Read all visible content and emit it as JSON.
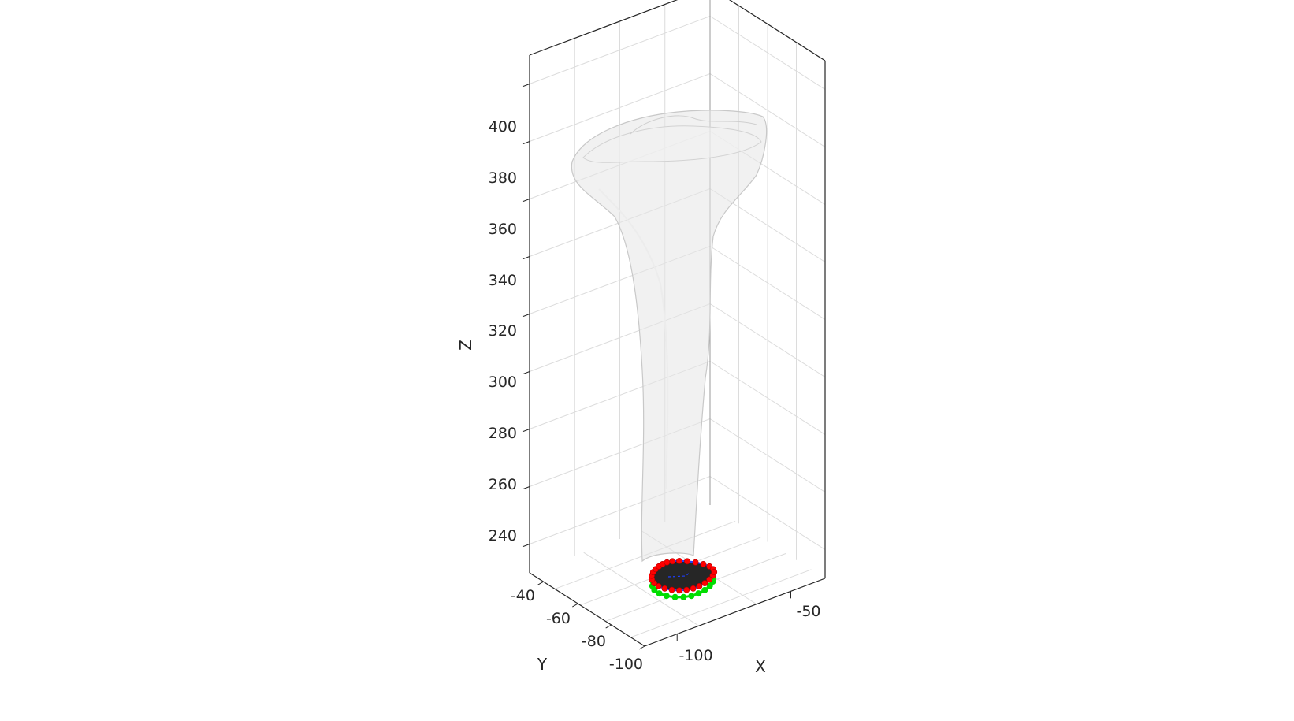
{
  "chart_data": {
    "type": "surface3d",
    "view": "3d",
    "grid": true,
    "xlabel": "X",
    "ylabel": "Y",
    "zlabel": "Z",
    "xticks": [
      "-100",
      "-50"
    ],
    "yticks": [
      "-40",
      "-60",
      "-80",
      "-100"
    ],
    "zticks": [
      "240",
      "260",
      "280",
      "300",
      "320",
      "340",
      "360",
      "380",
      "400"
    ],
    "xlim": [
      -120,
      -40
    ],
    "ylim": [
      -110,
      -30
    ],
    "zlim": [
      230,
      410
    ],
    "series": [
      {
        "kind": "bone-surface",
        "color": "#e6e6e6",
        "opacity": 0.55
      },
      {
        "kind": "distal-cross-section",
        "color": "#262626",
        "z": 232
      },
      {
        "kind": "red-points",
        "color": "#ff0000",
        "z": 232
      },
      {
        "kind": "blue-contour",
        "color": "#1f3fff",
        "z": 232
      },
      {
        "kind": "green-points",
        "color": "#00dd00",
        "z": 228
      }
    ]
  }
}
